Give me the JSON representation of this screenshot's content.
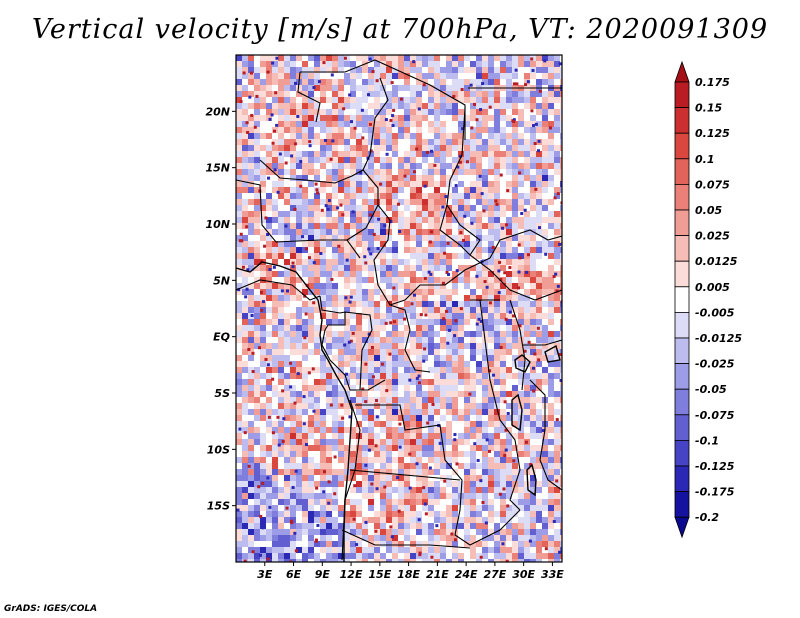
{
  "title": "Vertical velocity [m/s] at 700hPa, VT: 2020091309",
  "credit": "GrADS: IGES/COLA",
  "map": {
    "lat_labels": [
      "20N",
      "15N",
      "10N",
      "5N",
      "EQ",
      "5S",
      "10S",
      "15S"
    ],
    "lon_labels": [
      "3E",
      "6E",
      "9E",
      "12E",
      "15E",
      "18E",
      "21E",
      "24E",
      "27E",
      "30E",
      "33E"
    ],
    "lat_range": [
      -20,
      25
    ],
    "lon_range": [
      0,
      34
    ]
  },
  "colorbar": {
    "labels": [
      "0.175",
      "0.15",
      "0.125",
      "0.1",
      "0.075",
      "0.05",
      "0.025",
      "0.0125",
      "0.005",
      "-0.005",
      "-0.0125",
      "-0.025",
      "-0.05",
      "-0.075",
      "-0.1",
      "-0.125",
      "-0.175",
      "-0.2"
    ],
    "colors": [
      "#a50f15",
      "#b91c22",
      "#cb2f2f",
      "#d9473f",
      "#e2635a",
      "#ea8078",
      "#f09d96",
      "#f6bcb6",
      "#fbdcd8",
      "#ffffff",
      "#dcdcf6",
      "#bcbcef",
      "#9d9ce6",
      "#7f7edc",
      "#6260d1",
      "#4644c4",
      "#2b28b6",
      "#15129f",
      "#0b0890"
    ]
  }
}
